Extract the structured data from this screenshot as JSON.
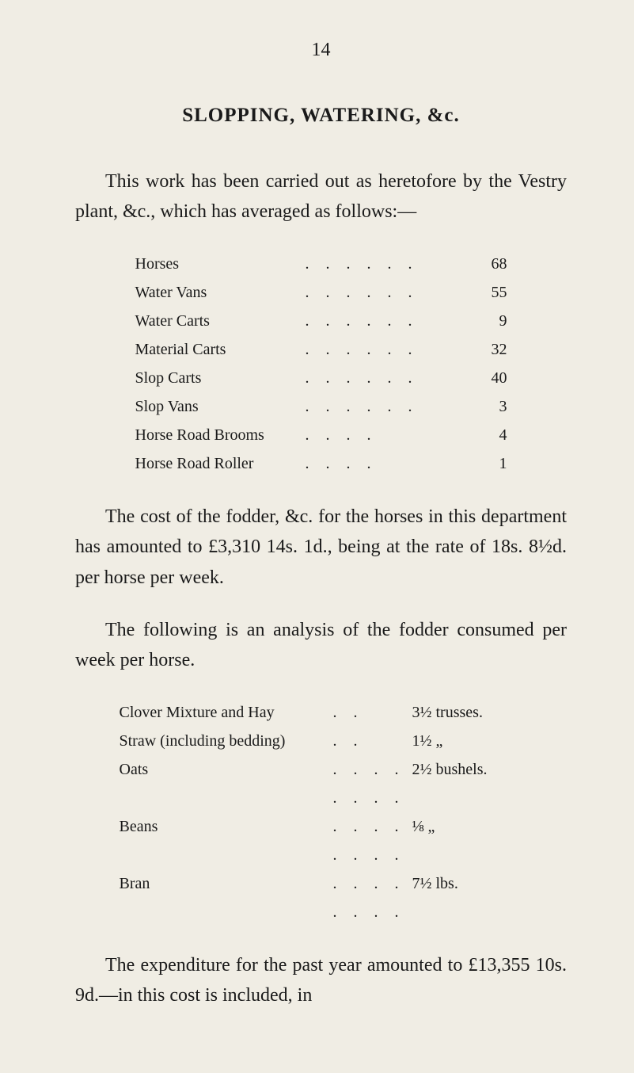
{
  "page_number": "14",
  "heading": "SLOPPING, WATERING, &c.",
  "paragraph1": "This work has been carried out as heretofore by the Vestry plant, &c., which has averaged as follows:—",
  "equipment": [
    {
      "label": "Horses",
      "dots": ". .   . .   . .",
      "value": "68"
    },
    {
      "label": "Water Vans",
      "dots": ". .   . .   . .",
      "value": "55"
    },
    {
      "label": "Water Carts",
      "dots": ". .   . .   . .",
      "value": "9"
    },
    {
      "label": "Material Carts",
      "dots": ". .   . .   . .",
      "value": "32"
    },
    {
      "label": "Slop Carts",
      "dots": ". .   . .   . .",
      "value": "40"
    },
    {
      "label": "Slop Vans",
      "dots": ". .   . .   . .",
      "value": "3"
    },
    {
      "label": "Horse Road Brooms",
      "dots": ". .   . .",
      "value": "4"
    },
    {
      "label": "Horse Road Roller",
      "dots": ". .   . .",
      "value": "1"
    }
  ],
  "paragraph2": "The cost of the fodder, &c. for the horses in this department has amounted to £3,310 14s. 1d., being at the rate of 18s. 8½d. per horse per week.",
  "paragraph3": "The following is an analysis of the fodder consumed per week per horse.",
  "fodder": [
    {
      "label": "Clover Mixture and Hay",
      "dots": ". .",
      "value": "3½ trusses."
    },
    {
      "label": "Straw (including bedding)",
      "dots": ". .",
      "value": "1½    „"
    },
    {
      "label": "Oats",
      "dots": ". .   . .   . .   . .",
      "value": "2½ bushels."
    },
    {
      "label": "Beans",
      "dots": ". .   . .   . .   . .",
      "value": "⅛    „"
    },
    {
      "label": "Bran",
      "dots": ". .   . .   . .   . .",
      "value": "7½ lbs."
    }
  ],
  "paragraph4": "The expenditure for the past year amounted to £13,355 10s. 9d.—in this cost is included, in",
  "colors": {
    "background": "#f0ede4",
    "text": "#1a1a1a"
  },
  "typography": {
    "body_fontsize": 24,
    "list_fontsize": 20,
    "heading_fontsize": 25,
    "font_family": "Georgia, Times New Roman, serif"
  }
}
